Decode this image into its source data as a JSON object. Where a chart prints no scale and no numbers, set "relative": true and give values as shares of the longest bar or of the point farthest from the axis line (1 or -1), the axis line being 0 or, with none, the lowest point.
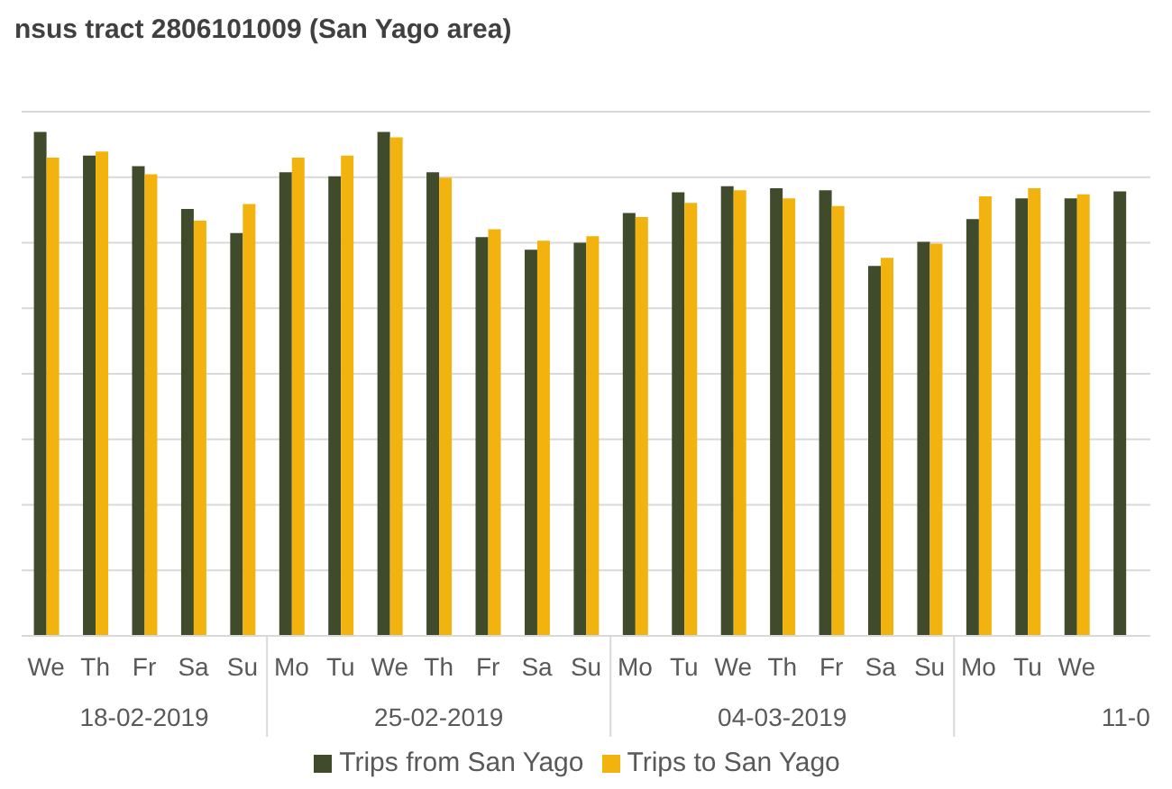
{
  "chart_data": {
    "type": "bar",
    "title": "nsus tract 2806101009 (San Yago area)",
    "categories": [
      "We",
      "Th",
      "Fr",
      "Sa",
      "Su",
      "Mo",
      "Tu",
      "We",
      "Th",
      "Fr",
      "Sa",
      "Su",
      "Mo",
      "Tu",
      "We",
      "Th",
      "Fr",
      "Sa",
      "Su",
      "Mo",
      "Tu",
      "We",
      null
    ],
    "relative": true,
    "grid": "y",
    "legend": "bottom",
    "annotations": [
      "18-02-2019",
      "25-02-2019",
      "04-03-2019",
      "11-0"
    ],
    "series": [
      {
        "name": "Trips from San Yago",
        "color": "#3f4b2b",
        "values": [
          1.0,
          0.953,
          0.932,
          0.847,
          0.799,
          0.92,
          0.912,
          1.0,
          0.92,
          0.791,
          0.766,
          0.78,
          0.839,
          0.88,
          0.892,
          0.888,
          0.884,
          0.734,
          0.782,
          0.827,
          0.868,
          0.868,
          0.882
        ]
      },
      {
        "name": "Trips to San Yago",
        "color": "#f2b30f",
        "values": [
          0.949,
          0.961,
          0.916,
          0.824,
          0.857,
          0.949,
          0.953,
          0.989,
          0.909,
          0.807,
          0.784,
          0.793,
          0.831,
          0.859,
          0.884,
          0.868,
          0.853,
          0.75,
          0.778,
          0.872,
          0.888,
          0.876,
          null
        ]
      }
    ]
  }
}
